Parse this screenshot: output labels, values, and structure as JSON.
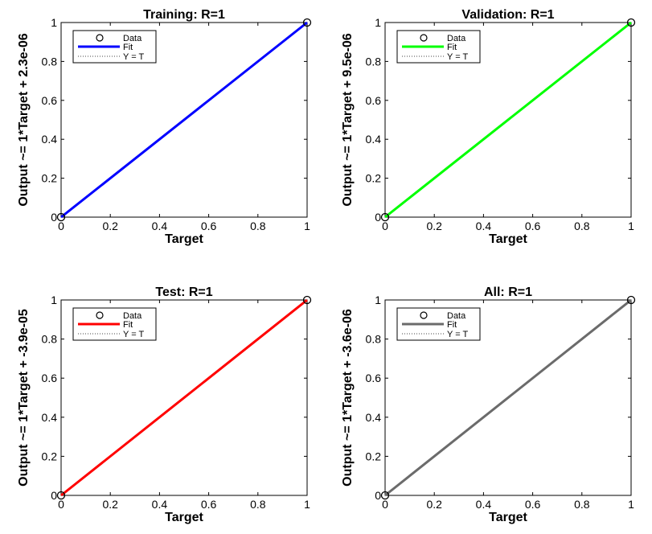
{
  "chart_data": [
    {
      "type": "line",
      "title": "Training: R=1",
      "xlabel": "Target",
      "ylabel": "Output ~= 1*Target + 2.3e-06",
      "xlim": [
        0,
        1
      ],
      "ylim": [
        0,
        1
      ],
      "xticks": [
        "0",
        "0.2",
        "0.4",
        "0.6",
        "0.8",
        "1"
      ],
      "yticks": [
        "0",
        "0.2",
        "0.4",
        "0.6",
        "0.8",
        "1"
      ],
      "grid": false,
      "legend": {
        "placement": "top-left",
        "entries": [
          "Data",
          "Fit",
          "Y = T"
        ]
      },
      "fit_color": "#0000ff",
      "series": [
        {
          "name": "Data",
          "kind": "scatter",
          "x": [
            0,
            1
          ],
          "y": [
            0,
            1
          ]
        },
        {
          "name": "Fit",
          "kind": "line",
          "x": [
            0,
            1
          ],
          "y": [
            2.3e-06,
            1.0000023
          ]
        },
        {
          "name": "Y = T",
          "kind": "dotted",
          "x": [
            0,
            1
          ],
          "y": [
            0,
            1
          ]
        }
      ]
    },
    {
      "type": "line",
      "title": "Validation: R=1",
      "xlabel": "Target",
      "ylabel": "Output ~= 1*Target + 9.5e-06",
      "xlim": [
        0,
        1
      ],
      "ylim": [
        0,
        1
      ],
      "xticks": [
        "0",
        "0.2",
        "0.4",
        "0.6",
        "0.8",
        "1"
      ],
      "yticks": [
        "0",
        "0.2",
        "0.4",
        "0.6",
        "0.8",
        "1"
      ],
      "grid": false,
      "legend": {
        "placement": "top-left",
        "entries": [
          "Data",
          "Fit",
          "Y = T"
        ]
      },
      "fit_color": "#00ff00",
      "series": [
        {
          "name": "Data",
          "kind": "scatter",
          "x": [
            0,
            1
          ],
          "y": [
            0,
            1
          ]
        },
        {
          "name": "Fit",
          "kind": "line",
          "x": [
            0,
            1
          ],
          "y": [
            9.5e-06,
            1.0000095
          ]
        },
        {
          "name": "Y = T",
          "kind": "dotted",
          "x": [
            0,
            1
          ],
          "y": [
            0,
            1
          ]
        }
      ]
    },
    {
      "type": "line",
      "title": "Test: R=1",
      "xlabel": "Target",
      "ylabel": "Output ~= 1*Target + -3.9e-05",
      "xlim": [
        0,
        1
      ],
      "ylim": [
        0,
        1
      ],
      "xticks": [
        "0",
        "0.2",
        "0.4",
        "0.6",
        "0.8",
        "1"
      ],
      "yticks": [
        "0",
        "0.2",
        "0.4",
        "0.6",
        "0.8",
        "1"
      ],
      "grid": false,
      "legend": {
        "placement": "top-left",
        "entries": [
          "Data",
          "Fit",
          "Y = T"
        ]
      },
      "fit_color": "#ff0000",
      "series": [
        {
          "name": "Data",
          "kind": "scatter",
          "x": [
            0,
            1
          ],
          "y": [
            0,
            1
          ]
        },
        {
          "name": "Fit",
          "kind": "line",
          "x": [
            0,
            1
          ],
          "y": [
            -3.9e-05,
            0.999961
          ]
        },
        {
          "name": "Y = T",
          "kind": "dotted",
          "x": [
            0,
            1
          ],
          "y": [
            0,
            1
          ]
        }
      ]
    },
    {
      "type": "line",
      "title": "All: R=1",
      "xlabel": "Target",
      "ylabel": "Output ~= 1*Target + -3.6e-06",
      "xlim": [
        0,
        1
      ],
      "ylim": [
        0,
        1
      ],
      "xticks": [
        "0",
        "0.2",
        "0.4",
        "0.6",
        "0.8",
        "1"
      ],
      "yticks": [
        "0",
        "0.2",
        "0.4",
        "0.6",
        "0.8",
        "1"
      ],
      "grid": false,
      "legend": {
        "placement": "top-left",
        "entries": [
          "Data",
          "Fit",
          "Y = T"
        ]
      },
      "fit_color": "#6b6b6b",
      "series": [
        {
          "name": "Data",
          "kind": "scatter",
          "x": [
            0,
            1
          ],
          "y": [
            0,
            1
          ]
        },
        {
          "name": "Fit",
          "kind": "line",
          "x": [
            0,
            1
          ],
          "y": [
            -3.6e-06,
            0.9999964
          ]
        },
        {
          "name": "Y = T",
          "kind": "dotted",
          "x": [
            0,
            1
          ],
          "y": [
            0,
            1
          ]
        }
      ]
    }
  ]
}
